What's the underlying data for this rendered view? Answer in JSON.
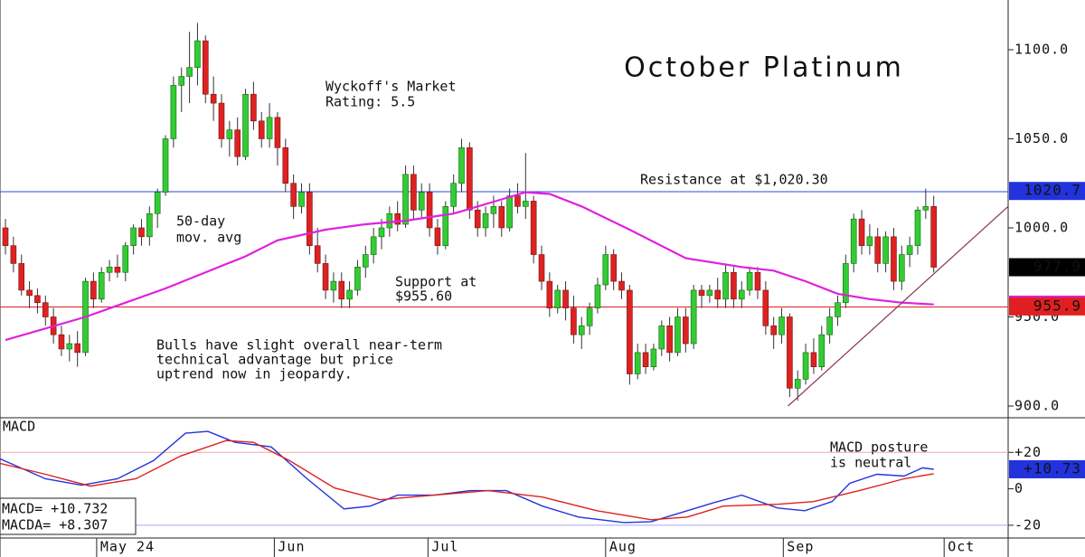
{
  "chart_data": [
    {
      "type": "candlestick",
      "title": "October Platinum",
      "xlim": [
        -0.68,
        125.3
      ],
      "ylim": [
        893.4,
        1127.9
      ],
      "yticks": [
        {
          "value": 1100,
          "label": "1100.0"
        },
        {
          "value": 1050,
          "label": "1050.0"
        },
        {
          "value": 1000,
          "label": "1000.0"
        },
        {
          "value": 950,
          "label": "950.0"
        },
        {
          "value": 900,
          "label": "900.0"
        }
      ],
      "up_color": "#33cc33",
      "down_color": "#dd2222",
      "ohlc": [
        [
          1000,
          1005,
          985,
          990
        ],
        [
          990,
          995,
          975,
          980
        ],
        [
          980,
          985,
          962,
          965
        ],
        [
          965,
          970,
          955,
          962
        ],
        [
          962,
          966,
          952,
          958
        ],
        [
          958,
          962,
          945,
          950
        ],
        [
          950,
          955,
          935,
          940
        ],
        [
          940,
          945,
          928,
          932
        ],
        [
          932,
          940,
          925,
          935
        ],
        [
          935,
          942,
          922,
          930
        ],
        [
          930,
          972,
          928,
          970
        ],
        [
          970,
          975,
          955,
          960
        ],
        [
          960,
          978,
          958,
          975
        ],
        [
          975,
          982,
          970,
          978
        ],
        [
          978,
          985,
          972,
          975
        ],
        [
          975,
          992,
          970,
          990
        ],
        [
          990,
          1002,
          985,
          1000
        ],
        [
          1000,
          1005,
          990,
          995
        ],
        [
          995,
          1012,
          990,
          1008
        ],
        [
          1008,
          1022,
          1000,
          1020
        ],
        [
          1020,
          1052,
          1018,
          1050
        ],
        [
          1050,
          1085,
          1045,
          1080
        ],
        [
          1080,
          1090,
          1065,
          1085
        ],
        [
          1085,
          1110,
          1070,
          1090
        ],
        [
          1090,
          1115,
          1080,
          1105
        ],
        [
          1105,
          1108,
          1070,
          1075
        ],
        [
          1075,
          1085,
          1060,
          1070
        ],
        [
          1070,
          1075,
          1045,
          1050
        ],
        [
          1050,
          1060,
          1040,
          1055
        ],
        [
          1055,
          1062,
          1035,
          1040
        ],
        [
          1040,
          1078,
          1038,
          1075
        ],
        [
          1075,
          1082,
          1055,
          1060
        ],
        [
          1060,
          1065,
          1045,
          1050
        ],
        [
          1050,
          1070,
          1045,
          1062
        ],
        [
          1062,
          1065,
          1035,
          1045
        ],
        [
          1045,
          1050,
          1020,
          1025
        ],
        [
          1025,
          1030,
          1005,
          1012
        ],
        [
          1012,
          1025,
          1008,
          1020
        ],
        [
          1020,
          1025,
          985,
          990
        ],
        [
          990,
          1000,
          975,
          980
        ],
        [
          980,
          985,
          960,
          965
        ],
        [
          965,
          975,
          958,
          970
        ],
        [
          970,
          975,
          955,
          960
        ],
        [
          960,
          970,
          955,
          965
        ],
        [
          965,
          982,
          962,
          978
        ],
        [
          978,
          990,
          972,
          985
        ],
        [
          985,
          1000,
          980,
          995
        ],
        [
          995,
          1005,
          988,
          1000
        ],
        [
          1000,
          1012,
          995,
          1008
        ],
        [
          1008,
          1015,
          998,
          1002
        ],
        [
          1002,
          1035,
          1000,
          1030
        ],
        [
          1030,
          1035,
          1005,
          1010
        ],
        [
          1010,
          1025,
          1005,
          1020
        ],
        [
          1020,
          1025,
          995,
          1000
        ],
        [
          1000,
          1005,
          985,
          990
        ],
        [
          990,
          1015,
          988,
          1012
        ],
        [
          1012,
          1030,
          1008,
          1025
        ],
        [
          1025,
          1050,
          1020,
          1045
        ],
        [
          1045,
          1048,
          1005,
          1010
        ],
        [
          1010,
          1015,
          995,
          1000
        ],
        [
          1000,
          1012,
          995,
          1008
        ],
        [
          1008,
          1018,
          1000,
          1012
        ],
        [
          1012,
          1015,
          995,
          1000
        ],
        [
          1000,
          1022,
          998,
          1018
        ],
        [
          1018,
          1025,
          1008,
          1012
        ],
        [
          1012,
          1042,
          1005,
          1015
        ],
        [
          1015,
          1018,
          980,
          985
        ],
        [
          985,
          990,
          965,
          970
        ],
        [
          970,
          975,
          950,
          955
        ],
        [
          955,
          968,
          952,
          965
        ],
        [
          965,
          970,
          948,
          955
        ],
        [
          955,
          962,
          935,
          940
        ],
        [
          940,
          950,
          932,
          945
        ],
        [
          945,
          958,
          940,
          955
        ],
        [
          955,
          972,
          952,
          968
        ],
        [
          968,
          990,
          965,
          985
        ],
        [
          985,
          988,
          965,
          970
        ],
        [
          970,
          975,
          960,
          965
        ],
        [
          965,
          968,
          912,
          918
        ],
        [
          918,
          935,
          915,
          930
        ],
        [
          930,
          935,
          918,
          922
        ],
        [
          922,
          935,
          920,
          932
        ],
        [
          932,
          948,
          928,
          945
        ],
        [
          945,
          950,
          925,
          930
        ],
        [
          930,
          955,
          928,
          950
        ],
        [
          950,
          955,
          930,
          935
        ],
        [
          935,
          968,
          932,
          965
        ],
        [
          965,
          968,
          955,
          962
        ],
        [
          962,
          968,
          958,
          965
        ],
        [
          965,
          972,
          955,
          960
        ],
        [
          960,
          980,
          955,
          975
        ],
        [
          975,
          978,
          955,
          960
        ],
        [
          960,
          970,
          955,
          965
        ],
        [
          965,
          978,
          962,
          975
        ],
        [
          975,
          978,
          960,
          965
        ],
        [
          965,
          970,
          940,
          945
        ],
        [
          945,
          950,
          932,
          940
        ],
        [
          940,
          955,
          935,
          950
        ],
        [
          950,
          952,
          905,
          910
        ],
        [
          910,
          920,
          903,
          915
        ],
        [
          915,
          935,
          912,
          930
        ],
        [
          930,
          938,
          918,
          922
        ],
        [
          922,
          945,
          920,
          940
        ],
        [
          940,
          955,
          935,
          950
        ],
        [
          950,
          962,
          945,
          958
        ],
        [
          958,
          985,
          955,
          980
        ],
        [
          980,
          1008,
          975,
          1005
        ],
        [
          1005,
          1010,
          985,
          990
        ],
        [
          990,
          1002,
          985,
          995
        ],
        [
          995,
          1000,
          975,
          980
        ],
        [
          980,
          998,
          975,
          995
        ],
        [
          995,
          1000,
          965,
          970
        ],
        [
          970,
          990,
          965,
          985
        ],
        [
          985,
          995,
          978,
          990
        ],
        [
          990,
          1012,
          985,
          1010
        ],
        [
          1010,
          1022,
          1005,
          1012
        ],
        [
          1012,
          1018,
          975,
          977.9
        ]
      ],
      "moving_average": {
        "label": [
          "50-day",
          "mov. avg"
        ],
        "color": "#e020e0",
        "x": [
          0,
          10,
          20,
          30,
          34,
          40,
          45,
          50,
          56,
          62,
          65,
          68,
          72,
          78,
          85,
          92,
          96,
          100,
          104,
          108,
          112,
          116
        ],
        "values": [
          937,
          950,
          966,
          984,
          993,
          999,
          1002,
          1004,
          1008,
          1016,
          1020,
          1019,
          1012,
          999,
          983,
          978,
          976,
          970,
          963,
          960,
          958,
          957
        ]
      },
      "levels": [
        {
          "label": [
            "Resistance at $1,020.30"
          ],
          "value": 1020.3,
          "color": "#3344dd"
        },
        {
          "label": [
            "Support at",
            "$955.60"
          ],
          "value": 955.6,
          "color": "#e02020"
        }
      ],
      "trendline": {
        "x": [
          97.8,
          125.3
        ],
        "values": [
          900,
          1012
        ],
        "color": "#883355"
      },
      "price_tags": [
        {
          "value": 1020.7,
          "color": "#2233dd"
        },
        {
          "value": 977.9,
          "color": "#000000"
        },
        {
          "value": 956.9,
          "color": "#e020e0"
        },
        {
          "value": 955.9,
          "color": "#e02020"
        }
      ],
      "annotations": [
        [
          "Wyckoff's Market",
          "Rating: 5.5"
        ],
        [
          "Bulls have slight overall near-term",
          "technical advantage but price",
          "uptrend now in jeopardy."
        ]
      ]
    },
    {
      "type": "line",
      "title": "MACD",
      "xlim": [
        -0.68,
        125.3
      ],
      "ylim": [
        -27,
        39
      ],
      "yticks": [
        {
          "value": 20,
          "label": "+20"
        },
        0,
        -20
      ],
      "reference_lines": [
        {
          "value": 20,
          "color": "#f0a8a8"
        },
        {
          "value": -20,
          "color": "#a8a8f0"
        }
      ],
      "series": [
        {
          "name": "MACD",
          "color": "#2233dd",
          "x": [
            -0.7,
            5,
            9.5,
            14,
            18.5,
            22.5,
            25.3,
            28.7,
            33.2,
            37.7,
            42.3,
            45.6,
            49,
            53.6,
            58.1,
            62.6,
            67.1,
            71.6,
            77.3,
            80.7,
            85.2,
            88.6,
            92,
            96.5,
            99.9,
            103.3,
            105.5,
            108.9,
            112.3,
            114.6,
            116
          ],
          "values": [
            16.5,
            5.5,
            2,
            5.5,
            15.5,
            30.5,
            31.5,
            25.5,
            23,
            5.5,
            -11,
            -9.5,
            -3.5,
            -3.5,
            -1,
            -1,
            -9.5,
            -15.5,
            -18.5,
            -18,
            -12,
            -7.5,
            -3.5,
            -10.5,
            -12,
            -7,
            3,
            8,
            7,
            11.5,
            10.7
          ]
        },
        {
          "name": "MACDA",
          "color": "#dd2222",
          "x": [
            -0.7,
            5,
            10.6,
            16.3,
            21.9,
            27.6,
            31,
            35.5,
            41.1,
            46.8,
            53.6,
            60.3,
            67.1,
            73.9,
            80.7,
            85.2,
            89.7,
            96.5,
            101,
            106.7,
            112.3,
            116
          ],
          "values": [
            14,
            8,
            1.5,
            5.5,
            18,
            26.5,
            25.5,
            15.5,
            0.5,
            -6,
            -3.5,
            -1,
            -4.5,
            -12,
            -17,
            -15.5,
            -9.5,
            -8.5,
            -7,
            -1,
            5.5,
            8.3
          ]
        }
      ],
      "readout": [
        "MACD= +10.732",
        "MACDA= +8.307"
      ],
      "tag": {
        "value": 10.73,
        "label": "+10.73",
        "color": "#2233dd"
      },
      "annotation": [
        "MACD posture",
        "is neutral"
      ],
      "xticks": [
        {
          "value": 11.4,
          "label": "May 24"
        },
        {
          "value": 33.6,
          "label": "Jun"
        },
        {
          "value": 52.8,
          "label": "Jul"
        },
        {
          "value": 75.0,
          "label": "Aug"
        },
        {
          "value": 97.2,
          "label": "Sep"
        },
        {
          "value": 117.3,
          "label": "Oct"
        }
      ]
    }
  ]
}
